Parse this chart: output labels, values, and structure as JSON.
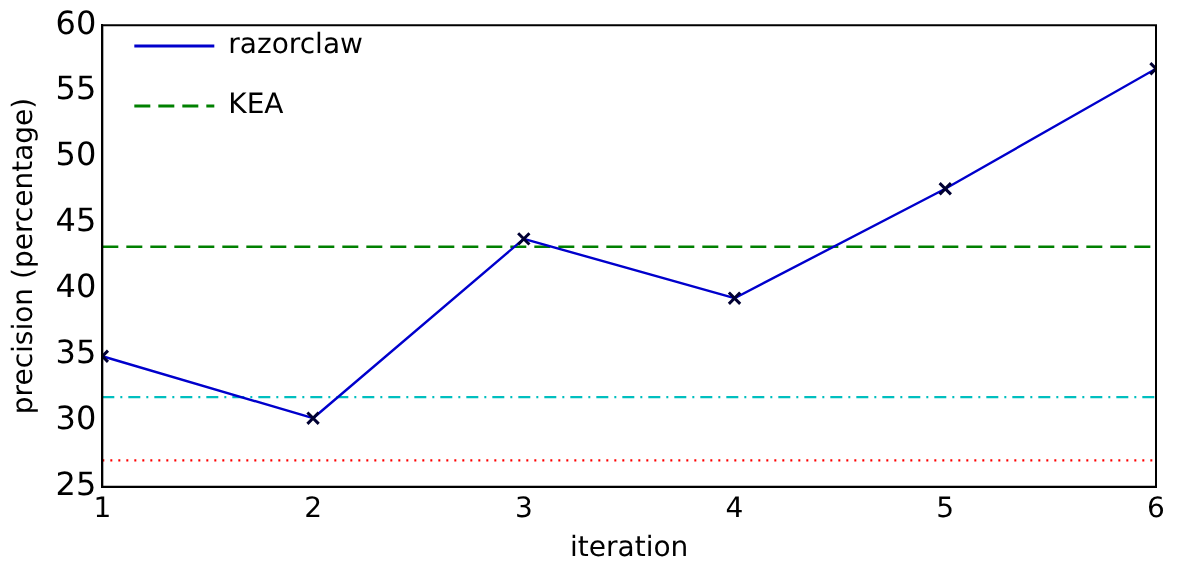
{
  "chart_data": {
    "type": "line",
    "xlabel": "iteration",
    "ylabel": "precision (percentage)",
    "x": [
      1,
      2,
      3,
      4,
      5,
      6
    ],
    "series": [
      {
        "name": "razorclaw",
        "color": "#0000cc",
        "values": [
          34.9,
          30.2,
          43.8,
          39.3,
          47.6,
          56.7
        ],
        "marker": "cross"
      }
    ],
    "ref_lines": [
      {
        "axis": "y",
        "value": 43.2,
        "label": "KEA",
        "color": "#008000",
        "line_style": "dashed"
      },
      {
        "axis": "y",
        "value": 27.0,
        "color": "#ff0000",
        "line_style": "dotted"
      },
      {
        "axis": "y",
        "value": 31.8,
        "color": "#00bfbf",
        "line_style": "dashdot"
      }
    ],
    "xlim": [
      1,
      6
    ],
    "xticks": [
      1,
      2,
      3,
      4,
      5,
      6
    ],
    "ylim": [
      25,
      60
    ],
    "yticks": [
      25,
      30,
      35,
      40,
      45,
      50,
      55,
      60
    ],
    "grid": false,
    "legend": "top left"
  }
}
